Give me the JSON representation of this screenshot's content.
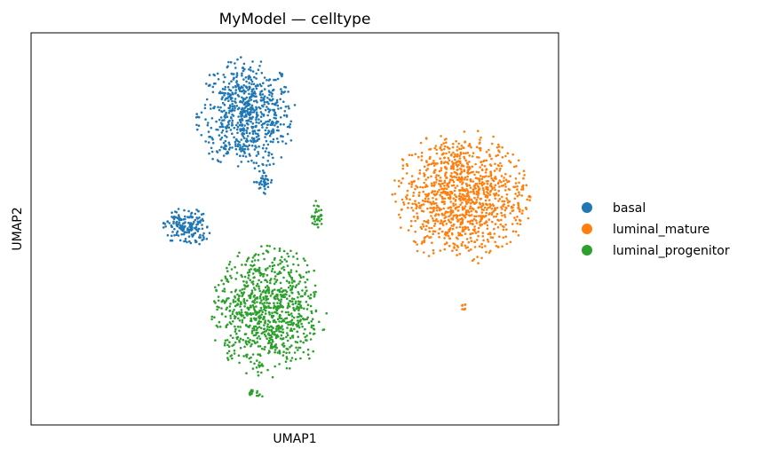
{
  "chart_data": {
    "type": "scatter",
    "title": "MyModel — celltype",
    "xlabel": "UMAP1",
    "ylabel": "UMAP2",
    "xlim": [
      0,
      100
    ],
    "ylim": [
      0,
      100
    ],
    "grid": false,
    "ticks": false,
    "legend_position": "right",
    "legend": [
      {
        "name": "basal",
        "color": "#1f77b4"
      },
      {
        "name": "luminal_mature",
        "color": "#ff7f0e"
      },
      {
        "name": "luminal_progenitor",
        "color": "#2ca02c"
      }
    ],
    "series": [
      {
        "name": "basal",
        "color": "#1f77b4",
        "clusters": [
          {
            "cx": 40.8,
            "cy": 79.0,
            "rx": 9.0,
            "ry": 14.0,
            "n": 700
          },
          {
            "cx": 29.5,
            "cy": 50.5,
            "rx": 4.5,
            "ry": 4.8,
            "n": 170
          },
          {
            "cx": 44.0,
            "cy": 62.0,
            "rx": 2.0,
            "ry": 3.0,
            "n": 40
          }
        ]
      },
      {
        "name": "luminal_mature",
        "color": "#ff7f0e",
        "clusters": [
          {
            "cx": 81.5,
            "cy": 58.0,
            "rx": 12.5,
            "ry": 16.5,
            "n": 1100
          },
          {
            "cx": 82.0,
            "cy": 30.0,
            "rx": 0.8,
            "ry": 1.2,
            "n": 8
          }
        ]
      },
      {
        "name": "luminal_progenitor",
        "color": "#2ca02c",
        "clusters": [
          {
            "cx": 44.8,
            "cy": 29.0,
            "rx": 10.5,
            "ry": 16.0,
            "n": 900
          },
          {
            "cx": 54.3,
            "cy": 53.5,
            "rx": 1.2,
            "ry": 4.0,
            "n": 35
          },
          {
            "cx": 42.5,
            "cy": 8.0,
            "rx": 1.5,
            "ry": 1.2,
            "n": 15
          }
        ]
      }
    ]
  }
}
